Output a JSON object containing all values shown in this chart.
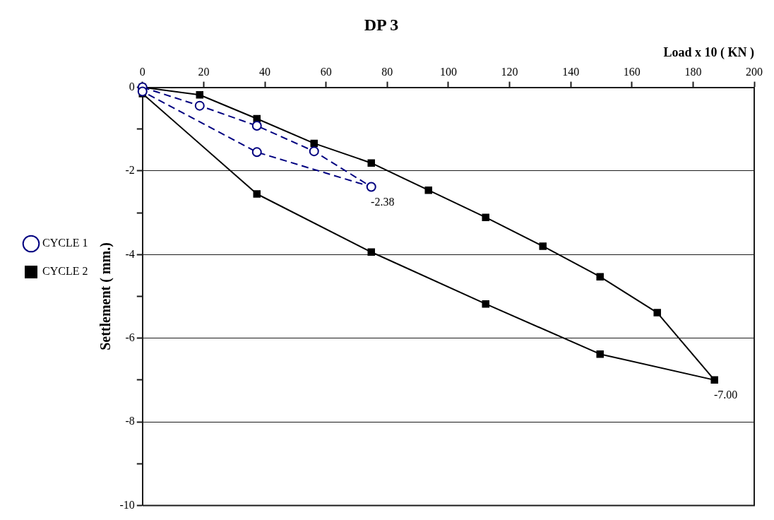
{
  "chart_data": {
    "type": "line",
    "title": "DP 3",
    "xlabel": "Load x 10 ( KN )",
    "ylabel": "Settlement ( mm.)",
    "xlim": [
      0,
      200
    ],
    "xticks": [
      0,
      20,
      40,
      60,
      80,
      100,
      120,
      140,
      160,
      180,
      200
    ],
    "ylim": [
      -10,
      0
    ],
    "yticks": [
      0,
      {
        "value": -1,
        "label": null
      },
      -2,
      {
        "value": -3,
        "label": null
      },
      -4,
      {
        "value": -5,
        "label": null
      },
      -6,
      {
        "value": -7,
        "label": null
      },
      -8,
      {
        "value": -9,
        "label": null
      },
      -10
    ],
    "grid": "y",
    "legend": "left",
    "series": [
      {
        "name": "CYCLE 1",
        "color": "#000080",
        "marker": "circle",
        "line_style": "dashed",
        "x": [
          0,
          18.7,
          37.4,
          56.1,
          74.8,
          37.4,
          0
        ],
        "values": [
          0,
          -0.44,
          -0.92,
          -1.53,
          -2.38,
          -1.55,
          -0.1
        ]
      },
      {
        "name": "CYCLE 2",
        "color": "#000000",
        "marker": "square",
        "line_style": "solid",
        "x": [
          0,
          18.7,
          37.4,
          56.1,
          74.8,
          93.5,
          112.2,
          130.9,
          149.6,
          168.3,
          187,
          149.6,
          112.2,
          74.8,
          37.4,
          0
        ],
        "values": [
          0,
          -0.18,
          -0.75,
          -1.34,
          -1.81,
          -2.46,
          -3.11,
          -3.8,
          -4.53,
          -5.39,
          -7.0,
          -6.38,
          -5.18,
          -3.94,
          -2.55,
          -0.15
        ]
      }
    ],
    "annotations": [
      {
        "text": "-2.38",
        "x": 74.8,
        "y": -2.38
      },
      {
        "text": "-7.00",
        "x": 187,
        "y": -7.0
      }
    ]
  }
}
